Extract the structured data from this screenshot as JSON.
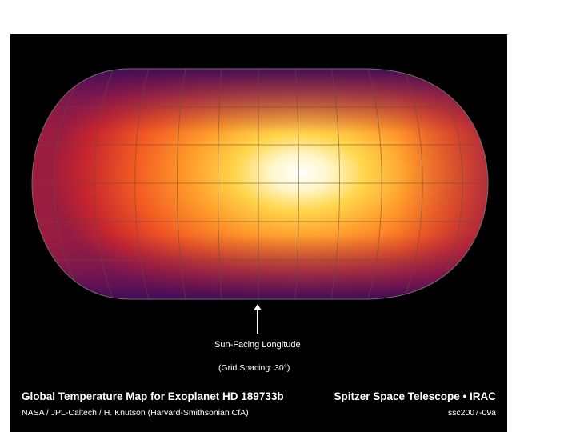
{
  "map": {
    "title": "Global Temperature Map for Exoplanet HD 189733b",
    "mission": "Spitzer Space Telescope • IRAC",
    "credit": "NASA / JPL-Caltech / H. Knutson (Harvard-Smithsonian CfA)",
    "image_id": "ssc2007-09a",
    "sun_facing_label": "Sun-Facing Longitude",
    "grid_spacing_label": "(Grid Spacing: 30°)",
    "projection": "pseudocylindrical",
    "grid_spacing_deg": 30,
    "colors": {
      "background": "#000000",
      "hottest": "#ffffff",
      "hot": "#ffe066",
      "warm": "#ff9a2a",
      "mid": "#e8401e",
      "cool": "#a01a3c",
      "coldest": "#4a1060",
      "grid": "#6b4a3a"
    }
  }
}
